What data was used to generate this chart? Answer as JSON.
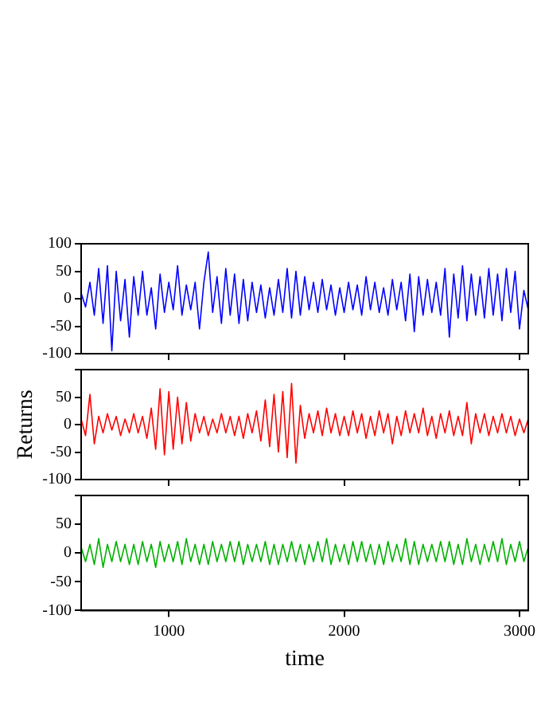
{
  "chart_data": [
    {
      "type": "line",
      "x": [
        500,
        525,
        550,
        575,
        600,
        625,
        650,
        675,
        700,
        725,
        750,
        775,
        800,
        825,
        850,
        875,
        900,
        925,
        950,
        975,
        1000,
        1025,
        1050,
        1075,
        1100,
        1125,
        1150,
        1175,
        1200,
        1225,
        1250,
        1275,
        1300,
        1325,
        1350,
        1375,
        1400,
        1425,
        1450,
        1475,
        1500,
        1525,
        1550,
        1575,
        1600,
        1625,
        1650,
        1675,
        1700,
        1725,
        1750,
        1775,
        1800,
        1825,
        1850,
        1875,
        1900,
        1925,
        1950,
        1975,
        2000,
        2025,
        2050,
        2075,
        2100,
        2125,
        2150,
        2175,
        2200,
        2225,
        2250,
        2275,
        2300,
        2325,
        2350,
        2375,
        2400,
        2425,
        2450,
        2475,
        2500,
        2525,
        2550,
        2575,
        2600,
        2625,
        2650,
        2675,
        2700,
        2725,
        2750,
        2775,
        2800,
        2825,
        2850,
        2875,
        2900,
        2925,
        2950,
        2975,
        3000,
        3025,
        3050
      ],
      "series": [
        {
          "color": "#0000ff",
          "values": [
            10,
            -15,
            30,
            -30,
            55,
            -45,
            60,
            -95,
            50,
            -40,
            35,
            -70,
            40,
            -30,
            50,
            -30,
            20,
            -55,
            45,
            -25,
            30,
            -20,
            60,
            -30,
            25,
            -20,
            30,
            -55,
            30,
            85,
            -25,
            40,
            -45,
            55,
            -30,
            45,
            -45,
            35,
            -40,
            30,
            -25,
            25,
            -35,
            20,
            -30,
            35,
            -25,
            55,
            -35,
            50,
            -30,
            40,
            -20,
            30,
            -25,
            35,
            -20,
            25,
            -30,
            20,
            -25,
            30,
            -20,
            25,
            -30,
            40,
            -20,
            30,
            -25,
            20,
            -30,
            35,
            -20,
            30,
            -40,
            45,
            -60,
            40,
            -30,
            35,
            -25,
            30,
            -30,
            55,
            -70,
            45,
            -35,
            60,
            -40,
            45,
            -30,
            40,
            -35,
            55,
            -30,
            45,
            -40,
            55,
            -25,
            50,
            -55,
            15,
            -20
          ]
        }
      ],
      "xlim": [
        500,
        3050
      ],
      "xticks": [
        1000,
        2000,
        3000
      ],
      "ylim": [
        -100,
        100
      ],
      "yticks": [
        -100,
        -50,
        0,
        50,
        100
      ],
      "tick_labels": "y"
    },
    {
      "type": "line",
      "ylabel": "Returns",
      "x": [
        500,
        525,
        550,
        575,
        600,
        625,
        650,
        675,
        700,
        725,
        750,
        775,
        800,
        825,
        850,
        875,
        900,
        925,
        950,
        975,
        1000,
        1025,
        1050,
        1075,
        1100,
        1125,
        1150,
        1175,
        1200,
        1225,
        1250,
        1275,
        1300,
        1325,
        1350,
        1375,
        1400,
        1425,
        1450,
        1475,
        1500,
        1525,
        1550,
        1575,
        1600,
        1625,
        1650,
        1675,
        1700,
        1725,
        1750,
        1775,
        1800,
        1825,
        1850,
        1875,
        1900,
        1925,
        1950,
        1975,
        2000,
        2025,
        2050,
        2075,
        2100,
        2125,
        2150,
        2175,
        2200,
        2225,
        2250,
        2275,
        2300,
        2325,
        2350,
        2375,
        2400,
        2425,
        2450,
        2475,
        2500,
        2525,
        2550,
        2575,
        2600,
        2625,
        2650,
        2675,
        2700,
        2725,
        2750,
        2775,
        2800,
        2825,
        2850,
        2875,
        2900,
        2925,
        2950,
        2975,
        3000,
        3025,
        3050
      ],
      "series": [
        {
          "color": "#ff0000",
          "values": [
            10,
            -20,
            55,
            -35,
            15,
            -15,
            20,
            -10,
            15,
            -20,
            10,
            -15,
            20,
            -15,
            15,
            -25,
            30,
            -45,
            65,
            -55,
            60,
            -45,
            50,
            -35,
            40,
            -30,
            20,
            -15,
            15,
            -20,
            10,
            -15,
            20,
            -15,
            15,
            -20,
            15,
            -25,
            20,
            -15,
            25,
            -30,
            45,
            -40,
            55,
            -50,
            60,
            -60,
            75,
            -70,
            35,
            -25,
            20,
            -15,
            25,
            -20,
            30,
            -15,
            20,
            -20,
            15,
            -20,
            25,
            -15,
            20,
            -25,
            15,
            -20,
            25,
            -15,
            20,
            -35,
            15,
            -20,
            25,
            -15,
            20,
            -15,
            30,
            -20,
            15,
            -25,
            20,
            -15,
            25,
            -20,
            15,
            -20,
            40,
            -35,
            20,
            -15,
            20,
            -20,
            15,
            -15,
            20,
            -15,
            15,
            -20,
            10,
            -15,
            10
          ]
        }
      ],
      "xlim": [
        500,
        3050
      ],
      "xticks": [
        1000,
        2000,
        3000
      ],
      "ylim": [
        -100,
        100
      ],
      "yticks": [
        -100,
        -50,
        0,
        50,
        {
          "value": 100,
          "label": null
        }
      ],
      "tick_labels": "y"
    },
    {
      "type": "line",
      "xlabel": "time",
      "x": [
        500,
        525,
        550,
        575,
        600,
        625,
        650,
        675,
        700,
        725,
        750,
        775,
        800,
        825,
        850,
        875,
        900,
        925,
        950,
        975,
        1000,
        1025,
        1050,
        1075,
        1100,
        1125,
        1150,
        1175,
        1200,
        1225,
        1250,
        1275,
        1300,
        1325,
        1350,
        1375,
        1400,
        1425,
        1450,
        1475,
        1500,
        1525,
        1550,
        1575,
        1600,
        1625,
        1650,
        1675,
        1700,
        1725,
        1750,
        1775,
        1800,
        1825,
        1850,
        1875,
        1900,
        1925,
        1950,
        1975,
        2000,
        2025,
        2050,
        2075,
        2100,
        2125,
        2150,
        2175,
        2200,
        2225,
        2250,
        2275,
        2300,
        2325,
        2350,
        2375,
        2400,
        2425,
        2450,
        2475,
        2500,
        2525,
        2550,
        2575,
        2600,
        2625,
        2650,
        2675,
        2700,
        2725,
        2750,
        2775,
        2800,
        2825,
        2850,
        2875,
        2900,
        2925,
        2950,
        2975,
        3000,
        3025,
        3050
      ],
      "series": [
        {
          "color": "#00b000",
          "values": [
            10,
            -15,
            15,
            -20,
            25,
            -25,
            15,
            -15,
            20,
            -15,
            15,
            -20,
            15,
            -20,
            20,
            -15,
            15,
            -25,
            20,
            -15,
            15,
            -15,
            20,
            -20,
            25,
            -15,
            15,
            -20,
            15,
            -20,
            20,
            -15,
            15,
            -15,
            20,
            -15,
            20,
            -20,
            15,
            -15,
            15,
            -15,
            20,
            -20,
            15,
            -20,
            15,
            -15,
            20,
            -15,
            15,
            -20,
            15,
            -15,
            20,
            -15,
            25,
            -20,
            15,
            -15,
            15,
            -20,
            20,
            -15,
            20,
            -15,
            15,
            -20,
            15,
            -20,
            20,
            -15,
            15,
            -15,
            25,
            -20,
            20,
            -20,
            15,
            -15,
            15,
            -15,
            20,
            -15,
            20,
            -20,
            15,
            -20,
            25,
            -15,
            15,
            -20,
            15,
            -15,
            20,
            -15,
            25,
            -20,
            15,
            -15,
            20,
            -15,
            10
          ]
        }
      ],
      "xlim": [
        500,
        3050
      ],
      "xticks": [
        1000,
        2000,
        3000
      ],
      "ylim": [
        -100,
        100
      ],
      "yticks": [
        -100,
        -50,
        0,
        50,
        {
          "value": 100,
          "label": null
        }
      ]
    }
  ]
}
